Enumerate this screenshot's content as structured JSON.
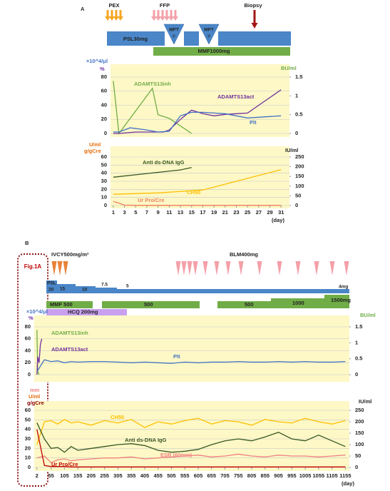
{
  "panel_a": {
    "label": "A",
    "pex": "PEX",
    "ffp": "FFP",
    "biopsy": "Biopsy",
    "psl": "PSL30mg",
    "mpt1": "MPT",
    "mpt1_num": "①",
    "mpt2": "MPT",
    "mpt2_num": "②",
    "mmf": "MMF1000mg"
  },
  "panel_b": {
    "label": "B",
    "ref": "Fig.1A",
    "ivcy": "IVCY500mg/m²",
    "blm": "BLM400mg",
    "psl": [
      "PSL",
      "20",
      "15",
      "10",
      "7.5",
      "5",
      "4mg"
    ],
    "mmf": [
      "MMF 500",
      "500",
      "500",
      "1000",
      "1500mg"
    ],
    "hcq": "HCQ 200mg"
  },
  "chart_data": [
    {
      "type": "line",
      "y_label": [
        {
          "text": "×10^4/μl",
          "color": "#4472c4"
        },
        {
          "text": "%",
          "color": "#7030a0"
        }
      ],
      "y2_label": {
        "text": "BU/ml",
        "color": "#70ad47"
      },
      "xlim": [
        0.5,
        32.5
      ],
      "ylim": [
        0,
        80
      ],
      "yticks": [
        0,
        20,
        40,
        60,
        80
      ],
      "y2lim": [
        0,
        1.5
      ],
      "y2ticks": [
        0,
        0.5,
        1,
        1.5
      ],
      "grid": true,
      "background": "#fdf8c6",
      "series": [
        {
          "name": "ADAMTS13inh",
          "color": "#70ad47",
          "axis": "y2",
          "x": [
            1,
            2,
            8,
            9,
            11,
            15
          ],
          "values": [
            1.4,
            0,
            1.2,
            0.5,
            0.4,
            0
          ]
        },
        {
          "name": "ADAMTS13act",
          "color": "#7030a0",
          "x": [
            1,
            2,
            5,
            10,
            11,
            13,
            15,
            17,
            19,
            21,
            23,
            25,
            31
          ],
          "values": [
            0,
            0,
            2,
            2,
            5,
            20,
            33,
            28,
            25,
            27,
            28,
            29,
            62
          ]
        },
        {
          "name": "Plt",
          "color": "#4472c4",
          "x": [
            1,
            2,
            4,
            7,
            9,
            11,
            13,
            15,
            17,
            21,
            25,
            31
          ],
          "values": [
            2,
            2,
            8,
            5,
            2,
            3,
            25,
            30,
            30,
            28,
            22,
            25
          ]
        }
      ]
    },
    {
      "type": "line",
      "y_label": [
        {
          "text": "U/ml",
          "color": "#e46c0a"
        },
        {
          "text": "g/gCre",
          "color": "#e46c0a"
        }
      ],
      "y2_label": {
        "text": "IU/ml",
        "color": "#222222"
      },
      "x_label": "(day)",
      "xlim": [
        0.5,
        32.5
      ],
      "xticks": [
        1,
        3,
        5,
        7,
        9,
        11,
        13,
        15,
        17,
        19,
        21,
        23,
        25,
        27,
        29,
        31
      ],
      "ylim": [
        0,
        60
      ],
      "yticks": [
        0,
        10,
        20,
        30,
        40,
        50,
        60
      ],
      "y2lim": [
        0,
        250
      ],
      "y2ticks": [
        0,
        50,
        100,
        150,
        200,
        250
      ],
      "grid": true,
      "background": "#fdf8c6",
      "series": [
        {
          "name": "Anti ds-DNA IgG",
          "color": "#375623",
          "x": [
            1,
            5,
            9,
            13,
            15
          ],
          "values": [
            35,
            38,
            41,
            44,
            47
          ]
        },
        {
          "name": "CH50",
          "color": "#ffc000",
          "axis": "y2",
          "x": [
            1,
            9,
            17,
            23,
            31
          ],
          "values": [
            58,
            65,
            80,
            125,
            185
          ]
        },
        {
          "name": "Ur Pro/Cre",
          "color": "#f08060",
          "x": [
            1,
            2,
            3,
            5,
            7,
            31
          ],
          "values": [
            5,
            3,
            0.5,
            0.3,
            0.3,
            0.3
          ]
        }
      ]
    },
    {
      "type": "line",
      "y_label": [
        {
          "text": "×10^4/μl",
          "color": "#4472c4"
        },
        {
          "text": "%",
          "color": "#7030a0"
        }
      ],
      "y2_label": {
        "text": "BU/ml",
        "color": "#70ad47"
      },
      "xlim": [
        -8,
        1170
      ],
      "ylim": [
        0,
        80
      ],
      "yticks": [
        0,
        20,
        40,
        60,
        80
      ],
      "y2lim": [
        0,
        1.5
      ],
      "y2ticks": [
        0,
        0.5,
        1,
        1.5
      ],
      "grid": true,
      "background": "#fdf8c6",
      "series": [
        {
          "name": "ADAMTS13inh",
          "color": "#70ad47",
          "axis": "y2",
          "x": [
            2,
            5,
            10
          ],
          "values": [
            1.4,
            0.1,
            0
          ]
        },
        {
          "name": "ADAMTS13act",
          "color": "#7030a0",
          "x": [
            2,
            5,
            10,
            15,
            20
          ],
          "values": [
            0,
            30,
            20,
            50,
            60
          ]
        },
        {
          "name": "Plt",
          "color": "#4472c4",
          "x": [
            2,
            30,
            55,
            80,
            105,
            130,
            155,
            205,
            255,
            305,
            355,
            405,
            455,
            505,
            555,
            605,
            655,
            705,
            755,
            805,
            855,
            905,
            955,
            1005,
            1055,
            1105,
            1155
          ],
          "values": [
            5,
            25,
            22,
            23,
            20,
            22,
            21,
            22,
            22,
            21,
            20,
            21,
            20,
            19,
            21,
            20,
            21,
            21,
            22,
            21,
            21,
            22,
            21,
            22,
            21,
            21,
            22
          ]
        }
      ]
    },
    {
      "type": "line",
      "y_label": [
        {
          "text": "mm",
          "color": "#f08080"
        },
        {
          "text": "U/ml",
          "color": "#e46c0a"
        },
        {
          "text": "g/gCre",
          "color": "#8b0000"
        }
      ],
      "y2_label": {
        "text": "IU/ml",
        "color": "#222222"
      },
      "x_label": "(day)",
      "xlim": [
        -8,
        1170
      ],
      "xticks": [
        2,
        55,
        105,
        155,
        205,
        255,
        305,
        355,
        405,
        455,
        505,
        555,
        605,
        655,
        705,
        755,
        805,
        855,
        905,
        955,
        1005,
        1055,
        1105,
        1155
      ],
      "ylim": [
        0,
        60
      ],
      "yticks": [
        0,
        10,
        20,
        30,
        40,
        50,
        60
      ],
      "y2lim": [
        0,
        250
      ],
      "y2ticks": [
        0,
        50,
        100,
        150,
        200,
        250
      ],
      "grid": true,
      "background": "#fdf8c6",
      "series": [
        {
          "name": "CH50",
          "color": "#ffc000",
          "axis": "y2",
          "x": [
            2,
            30,
            55,
            80,
            105,
            130,
            155,
            205,
            255,
            305,
            355,
            405,
            455,
            505,
            555,
            605,
            655,
            705,
            755,
            805,
            855,
            905,
            955,
            1005,
            1055,
            1105,
            1155
          ],
          "values": [
            100,
            200,
            205,
            190,
            210,
            195,
            200,
            185,
            205,
            195,
            210,
            175,
            200,
            190,
            205,
            215,
            190,
            205,
            200,
            185,
            210,
            200,
            195,
            215,
            200,
            190,
            205
          ]
        },
        {
          "name": "Anti ds-DNA IgG",
          "color": "#375623",
          "x": [
            2,
            30,
            55,
            80,
            105,
            130,
            155,
            205,
            255,
            305,
            355,
            405,
            455,
            505,
            555,
            605,
            655,
            705,
            755,
            805,
            855,
            905,
            955,
            1005,
            1055,
            1105,
            1155
          ],
          "values": [
            47,
            30,
            20,
            21,
            16,
            22,
            18,
            20,
            22,
            24,
            25,
            23,
            18,
            16,
            17,
            19,
            24,
            28,
            30,
            28,
            32,
            37,
            30,
            28,
            34,
            28,
            22
          ]
        },
        {
          "name": "ESR (60min)",
          "color": "#f08080",
          "x": [
            2,
            30,
            55,
            80,
            105,
            130,
            155,
            205,
            255,
            305,
            355,
            405,
            455,
            505,
            555,
            605,
            655,
            705,
            755,
            805,
            855,
            905,
            955,
            1005,
            1055,
            1105,
            1155
          ],
          "values": [
            10,
            12,
            5,
            8,
            9,
            7,
            8,
            9,
            10,
            10,
            11,
            9,
            10,
            11,
            12,
            13,
            11,
            12,
            14,
            12,
            11,
            13,
            12,
            12,
            11,
            12,
            13
          ]
        },
        {
          "name": "Ur Pro/Cre",
          "color": "#c00000",
          "x": [
            2,
            30,
            55,
            80,
            105,
            130,
            155,
            205,
            255,
            305,
            355,
            405,
            455,
            505,
            555,
            605,
            655,
            705,
            755,
            805,
            855,
            905,
            955,
            1005,
            1055,
            1105,
            1155
          ],
          "values": [
            40,
            2,
            1,
            1,
            1,
            0.5,
            0.5,
            0.5,
            0.5,
            0.5,
            0.5,
            0.5,
            0.5,
            0.5,
            0.5,
            0.5,
            0.5,
            0.5,
            0.5,
            0.5,
            0.5,
            0.5,
            0.5,
            0.5,
            0.5,
            0.5,
            0.5
          ]
        }
      ]
    }
  ]
}
